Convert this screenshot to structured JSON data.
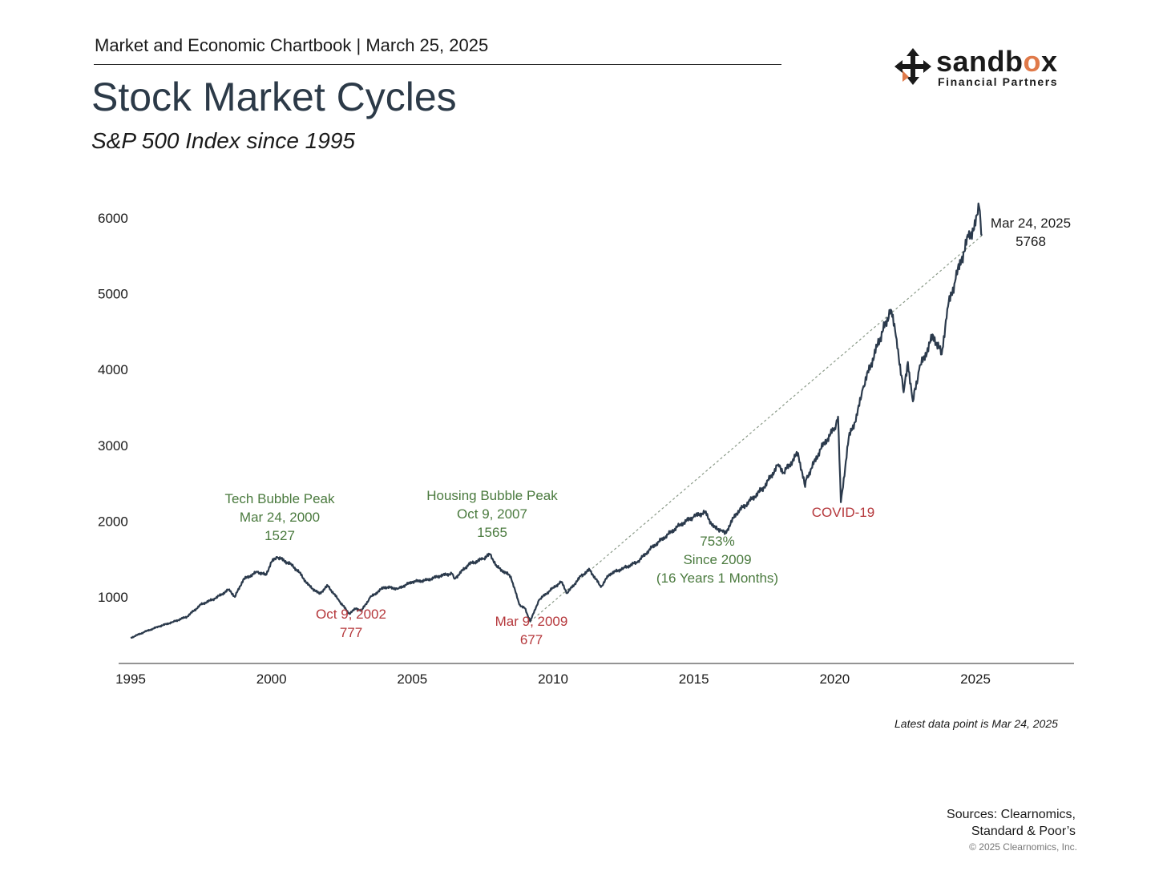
{
  "header": {
    "chartbook": "Market and Economic Chartbook | March 25, 2025",
    "title": "Stock Market Cycles",
    "subtitle": "S&P 500 Index since 1995"
  },
  "logo": {
    "word_pre": "sandb",
    "word_o": "o",
    "word_post": "x",
    "sub": "Financial Partners"
  },
  "colors": {
    "line": "#2b3a4c",
    "peak": "#4a7a3e",
    "trough": "#b5373b",
    "accent": "#e07a4a"
  },
  "chart_data": {
    "type": "line",
    "title": "Stock Market Cycles",
    "subtitle": "S&P 500 Index since 1995",
    "xlabel": "",
    "ylabel": "",
    "xlim": [
      1995,
      2028.5
    ],
    "ylim": [
      200,
      6500
    ],
    "x_ticks": [
      "1995",
      "2000",
      "2005",
      "2010",
      "2015",
      "2020",
      "2025"
    ],
    "y_ticks": [
      "1000",
      "2000",
      "3000",
      "4000",
      "5000",
      "6000"
    ],
    "grid": false,
    "legend": "none",
    "series": [
      {
        "x": [
          1995.0,
          1995.5,
          1996.0,
          1996.5,
          1997.0,
          1997.5,
          1997.8,
          1998.0,
          1998.5,
          1998.7,
          1999.0,
          1999.5,
          1999.8,
          2000.0,
          2000.2,
          2000.7,
          2001.0,
          2001.3,
          2001.7,
          2002.0,
          2002.4,
          2002.77,
          2003.0,
          2003.2,
          2003.5,
          2004.0,
          2004.5,
          2005.0,
          2005.5,
          2006.0,
          2006.4,
          2006.5,
          2007.0,
          2007.5,
          2007.77,
          2008.0,
          2008.5,
          2008.8,
          2009.0,
          2009.19,
          2009.5,
          2010.0,
          2010.3,
          2010.5,
          2011.0,
          2011.3,
          2011.7,
          2012.0,
          2012.5,
          2013.0,
          2013.5,
          2014.0,
          2014.5,
          2015.0,
          2015.4,
          2015.7,
          2016.0,
          2016.1,
          2016.5,
          2017.0,
          2017.5,
          2018.0,
          2018.2,
          2018.7,
          2018.95,
          2019.0,
          2019.5,
          2020.0,
          2020.12,
          2020.22,
          2020.5,
          2020.8,
          2021.0,
          2021.5,
          2021.99,
          2022.2,
          2022.45,
          2022.6,
          2022.78,
          2023.0,
          2023.5,
          2023.8,
          2024.0,
          2024.3,
          2024.5,
          2024.75,
          2025.0,
          2025.13,
          2025.23
        ],
        "y": [
          460,
          540,
          610,
          670,
          740,
          900,
          950,
          980,
          1100,
          1000,
          1230,
          1330,
          1290,
          1460,
          1527,
          1430,
          1320,
          1160,
          1040,
          1150,
          950,
          777,
          850,
          820,
          990,
          1130,
          1110,
          1200,
          1220,
          1280,
          1310,
          1240,
          1430,
          1500,
          1565,
          1400,
          1270,
          900,
          850,
          677,
          960,
          1120,
          1200,
          1050,
          1280,
          1360,
          1130,
          1300,
          1380,
          1460,
          1650,
          1800,
          1950,
          2060,
          2120,
          1920,
          1880,
          1830,
          2100,
          2270,
          2450,
          2750,
          2640,
          2900,
          2450,
          2560,
          2950,
          3230,
          3380,
          2250,
          3100,
          3400,
          3750,
          4300,
          4790,
          4400,
          3700,
          4100,
          3580,
          4000,
          4450,
          4200,
          4800,
          5200,
          5450,
          5750,
          5900,
          6144,
          5768
        ]
      }
    ],
    "annotations": [
      {
        "type": "peak",
        "lines": [
          "Tech Bubble Peak",
          "Mar 24, 2000",
          "1527"
        ],
        "x": 2000.22,
        "y": 1527
      },
      {
        "type": "trough",
        "lines": [
          "Oct 9, 2002",
          "777"
        ],
        "x": 2002.77,
        "y": 777
      },
      {
        "type": "peak",
        "lines": [
          "Housing Bubble Peak",
          "Oct 9, 2007",
          "1565"
        ],
        "x": 2007.77,
        "y": 1565
      },
      {
        "type": "trough",
        "lines": [
          "Mar 9, 2009",
          "677"
        ],
        "x": 2009.19,
        "y": 677
      },
      {
        "type": "peak",
        "lines": [
          "753%",
          "Since 2009",
          "(16 Years 1 Months)"
        ],
        "x": 2015.8,
        "y": 1800
      },
      {
        "type": "trough",
        "lines": [
          "COVID-19"
        ],
        "x": 2020.2,
        "y": 2250
      },
      {
        "type": "latest",
        "lines": [
          "Mar 24, 2025",
          "5768"
        ],
        "x": 2025.23,
        "y": 5768
      }
    ],
    "trend_line": {
      "from": {
        "x": 2009.19,
        "y": 677
      },
      "to": {
        "x": 2025.23,
        "y": 5768
      }
    }
  },
  "footer": {
    "latest_note": "Latest data point is Mar 24, 2025",
    "sources_1": "Sources: Clearnomics,",
    "sources_2": "Standard & Poor’s",
    "copyright": "© 2025 Clearnomics, Inc."
  }
}
